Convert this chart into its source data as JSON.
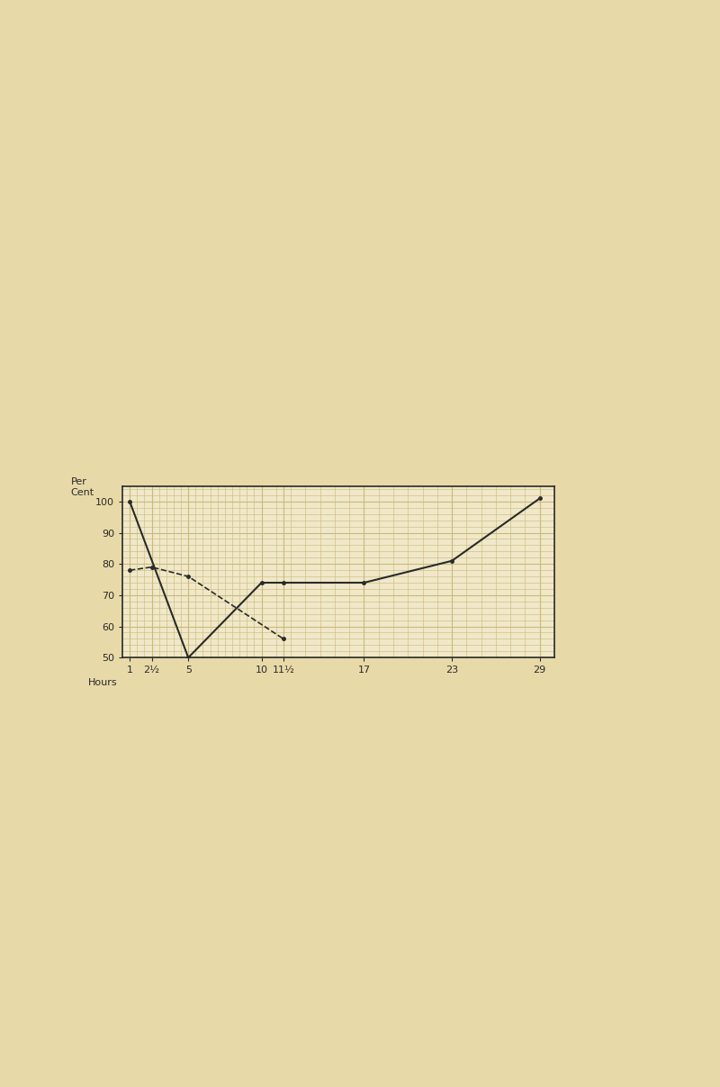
{
  "title": "",
  "ylabel": "Per\nCent",
  "xlabel": "Hours",
  "background_color": "#f0e8c8",
  "grid_color": "#c8b878",
  "axis_color": "#2a2a2a",
  "ylim": [
    50,
    105
  ],
  "yticks": [
    50,
    60,
    70,
    80,
    90,
    100
  ],
  "xtick_labels": [
    "1",
    "2½",
    "5",
    "10",
    "11½",
    "17",
    "23",
    "29"
  ],
  "xtick_positions": [
    1,
    2.5,
    5,
    10,
    11.5,
    17,
    23,
    29
  ],
  "solid_line": {
    "x": [
      1,
      5,
      10,
      11.5,
      17,
      23,
      29
    ],
    "y": [
      100,
      50,
      74,
      74,
      74,
      81,
      101
    ],
    "color": "#2a2a2a",
    "linewidth": 1.5,
    "marker": ".",
    "markersize": 5
  },
  "dotted_line": {
    "x": [
      1,
      2.5,
      5,
      11.5
    ],
    "y": [
      78,
      79,
      76,
      56
    ],
    "color": "#2a2a2a",
    "linewidth": 1.2,
    "linestyle": "--",
    "marker": ".",
    "markersize": 5
  },
  "minor_grid_divisions": 5,
  "figure_bg": "#e8ddb0",
  "chart_bg": "#f0e8c8"
}
